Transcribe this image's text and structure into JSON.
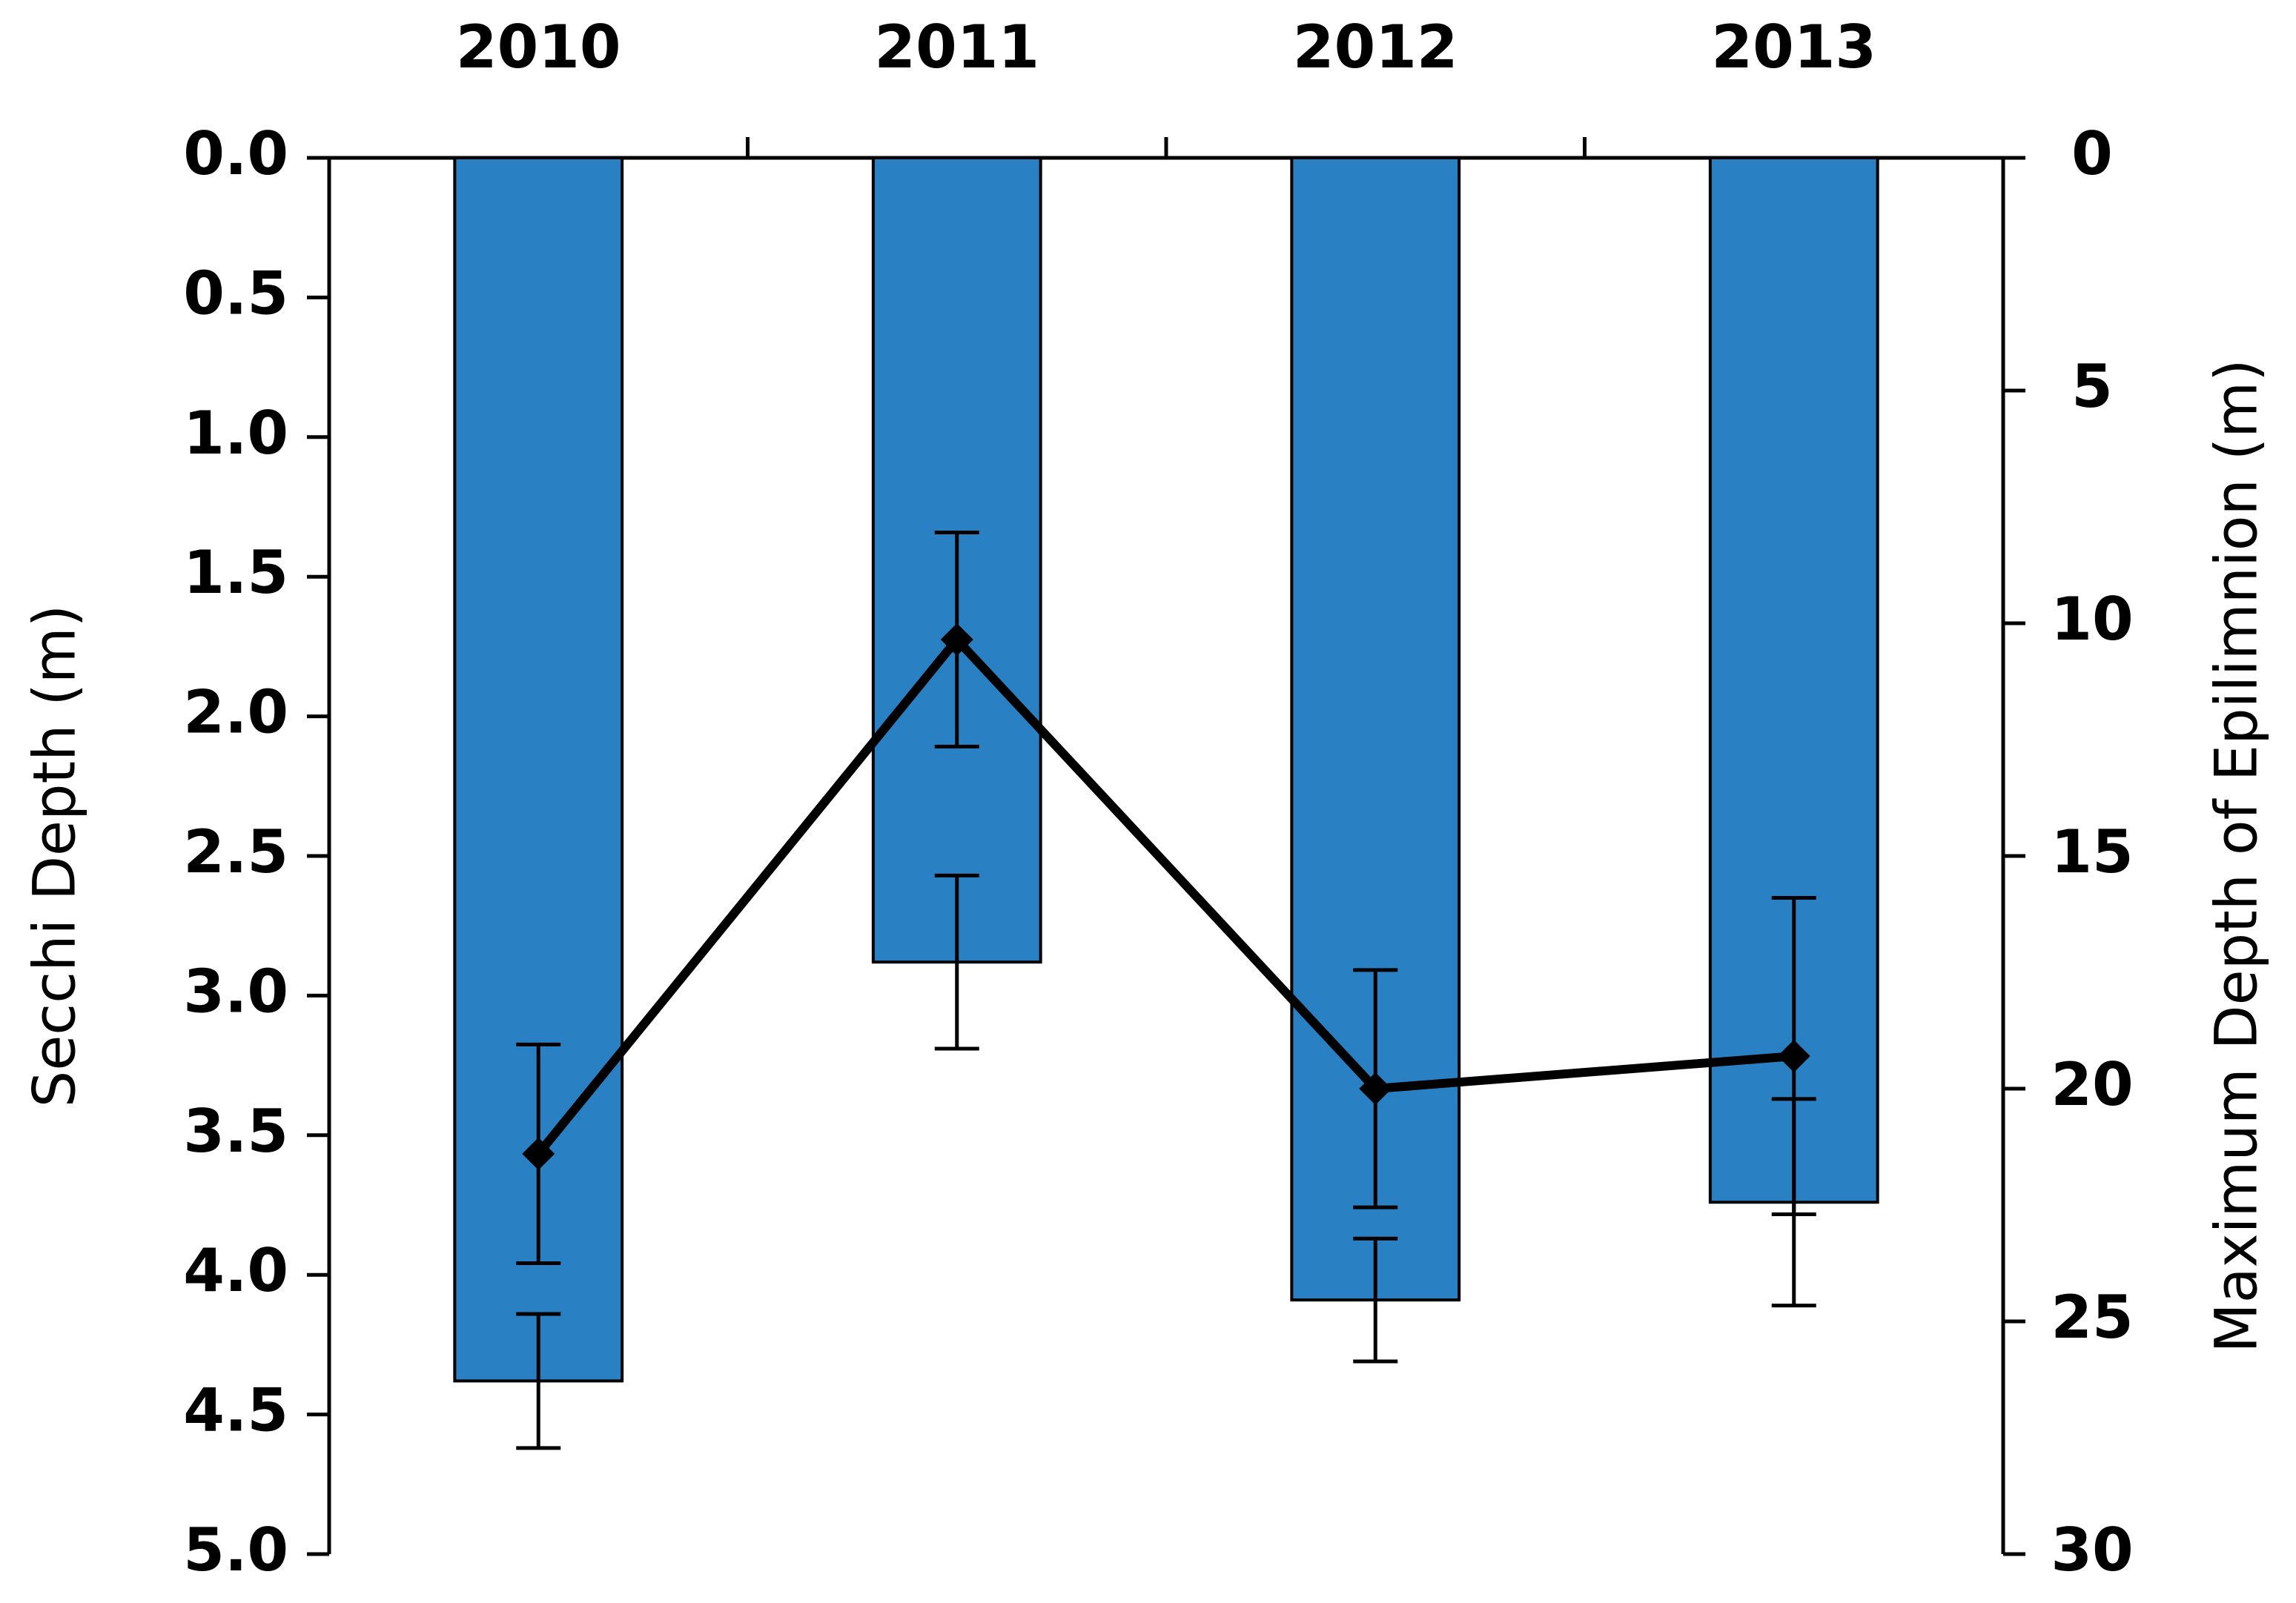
{
  "chart_data": {
    "type": "bar-line",
    "ylabel": "Secchi Depth (m)",
    "y2label": "Maximum Depth of Epilimnion (m)",
    "categories": [
      "2010",
      "2011",
      "2012",
      "2013"
    ],
    "xaxis_position": "top",
    "y_inverted": true,
    "bars": {
      "color": "#2980c3",
      "values": [
        4.38,
        2.88,
        4.09,
        3.74
      ],
      "errors": [
        0.24,
        0.31,
        0.22,
        0.37
      ]
    },
    "line": {
      "axis": "y2",
      "color": "#000000",
      "values": [
        21.4,
        10.35,
        20.0,
        19.3
      ],
      "errors": [
        2.35,
        2.3,
        2.55,
        3.4
      ]
    },
    "ylim": [
      0,
      5
    ],
    "yticks": [
      {
        "value": 0,
        "label": "0.0"
      },
      0.5,
      {
        "value": 1,
        "label": "1.0"
      },
      1.5,
      {
        "value": 2,
        "label": "2.0"
      },
      2.5,
      {
        "value": 3,
        "label": "3.0"
      },
      3.5,
      {
        "value": 4,
        "label": "4.0"
      },
      4.5,
      {
        "value": 5,
        "label": "5.0"
      }
    ],
    "y2lim": [
      0,
      30
    ],
    "y2ticks": [
      0,
      5,
      10,
      15,
      20,
      25,
      30
    ]
  }
}
